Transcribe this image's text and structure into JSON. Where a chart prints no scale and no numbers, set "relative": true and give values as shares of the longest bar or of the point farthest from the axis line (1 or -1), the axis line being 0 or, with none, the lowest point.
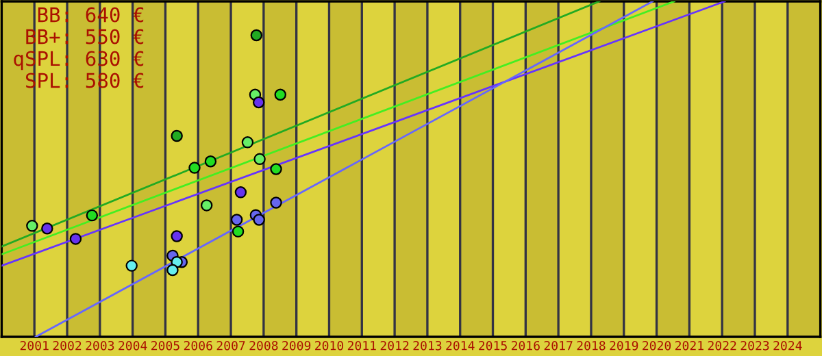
{
  "chart_data": {
    "type": "scatter",
    "relative": true,
    "marker": "circle",
    "grid": "x",
    "xlim": [
      2000,
      2025
    ],
    "xticks": [
      2001,
      2002,
      2003,
      2004,
      2005,
      2006,
      2007,
      2008,
      2009,
      2010,
      2011,
      2012,
      2013,
      2014,
      2015,
      2016,
      2017,
      2018,
      2019,
      2020,
      2021,
      2022,
      2023,
      2024
    ],
    "annotations": [
      "BB: 640 €",
      "BB+: 550 €",
      "qSPL: 630 €",
      "SPL: 580 €"
    ],
    "bands": [
      {
        "axis": "x",
        "from": 2000,
        "to": 2001,
        "color": "#c9bd33"
      },
      {
        "axis": "x",
        "from": 2002,
        "to": 2003,
        "color": "#c9bd33"
      },
      {
        "axis": "x",
        "from": 2004,
        "to": 2005,
        "color": "#c9bd33"
      },
      {
        "axis": "x",
        "from": 2006,
        "to": 2007,
        "color": "#c9bd33"
      },
      {
        "axis": "x",
        "from": 2008,
        "to": 2009,
        "color": "#c9bd33"
      },
      {
        "axis": "x",
        "from": 2010,
        "to": 2011,
        "color": "#c9bd33"
      },
      {
        "axis": "x",
        "from": 2012,
        "to": 2013,
        "color": "#c9bd33"
      },
      {
        "axis": "x",
        "from": 2014,
        "to": 2015,
        "color": "#c9bd33"
      },
      {
        "axis": "x",
        "from": 2016,
        "to": 2017,
        "color": "#c9bd33"
      },
      {
        "axis": "x",
        "from": 2018,
        "to": 2019,
        "color": "#c9bd33"
      },
      {
        "axis": "x",
        "from": 2020,
        "to": 2021,
        "color": "#c9bd33"
      },
      {
        "axis": "x",
        "from": 2022,
        "to": 2023,
        "color": "#c9bd33"
      },
      {
        "axis": "x",
        "from": 2024,
        "to": 2025,
        "color": "#c9bd33"
      }
    ],
    "series": [
      {
        "type": "line",
        "marker": "none",
        "color": "#22aa22",
        "x": [
          2000,
          2018.25
        ],
        "values": [
          0.269,
          1.0
        ]
      },
      {
        "type": "line",
        "marker": "none",
        "color": "#44ee22",
        "x": [
          2000,
          2020.54
        ],
        "values": [
          0.246,
          1.0
        ]
      },
      {
        "type": "line",
        "marker": "none",
        "color": "#6633ff",
        "x": [
          2000,
          2022.08
        ],
        "values": [
          0.212,
          1.0
        ]
      },
      {
        "type": "line",
        "marker": "none",
        "color": "#6666ff",
        "x": [
          2001.04,
          2019.88
        ],
        "values": [
          0.0,
          1.0
        ]
      },
      {
        "color": "#22aa22",
        "x": [
          2007.78,
          2005.35
        ],
        "values": [
          0.899,
          0.599
        ]
      },
      {
        "color": "#22dd22",
        "x": [
          2008.51,
          2006.38,
          2005.89,
          2008.38,
          2002.76,
          2007.22
        ],
        "values": [
          0.722,
          0.523,
          0.504,
          0.5,
          0.362,
          0.314
        ]
      },
      {
        "color": "#66ee66",
        "x": [
          2007.74,
          2007.51,
          2007.88,
          2000.93,
          2006.26
        ],
        "values": [
          0.722,
          0.58,
          0.53,
          0.331,
          0.392
        ]
      },
      {
        "color": "#6633ee",
        "x": [
          2007.85,
          2001.39,
          2002.26,
          2005.35,
          2007.3
        ],
        "values": [
          0.699,
          0.323,
          0.292,
          0.3,
          0.431
        ]
      },
      {
        "color": "#6666ee",
        "x": [
          2005.22,
          2005.5,
          2007.18,
          2007.76,
          2007.86,
          2008.38
        ],
        "values": [
          0.242,
          0.223,
          0.349,
          0.363,
          0.349,
          0.4
        ]
      },
      {
        "color": "#66eeee",
        "x": [
          2003.97,
          2005.35,
          2005.22
        ],
        "values": [
          0.212,
          0.223,
          0.199
        ]
      }
    ]
  }
}
